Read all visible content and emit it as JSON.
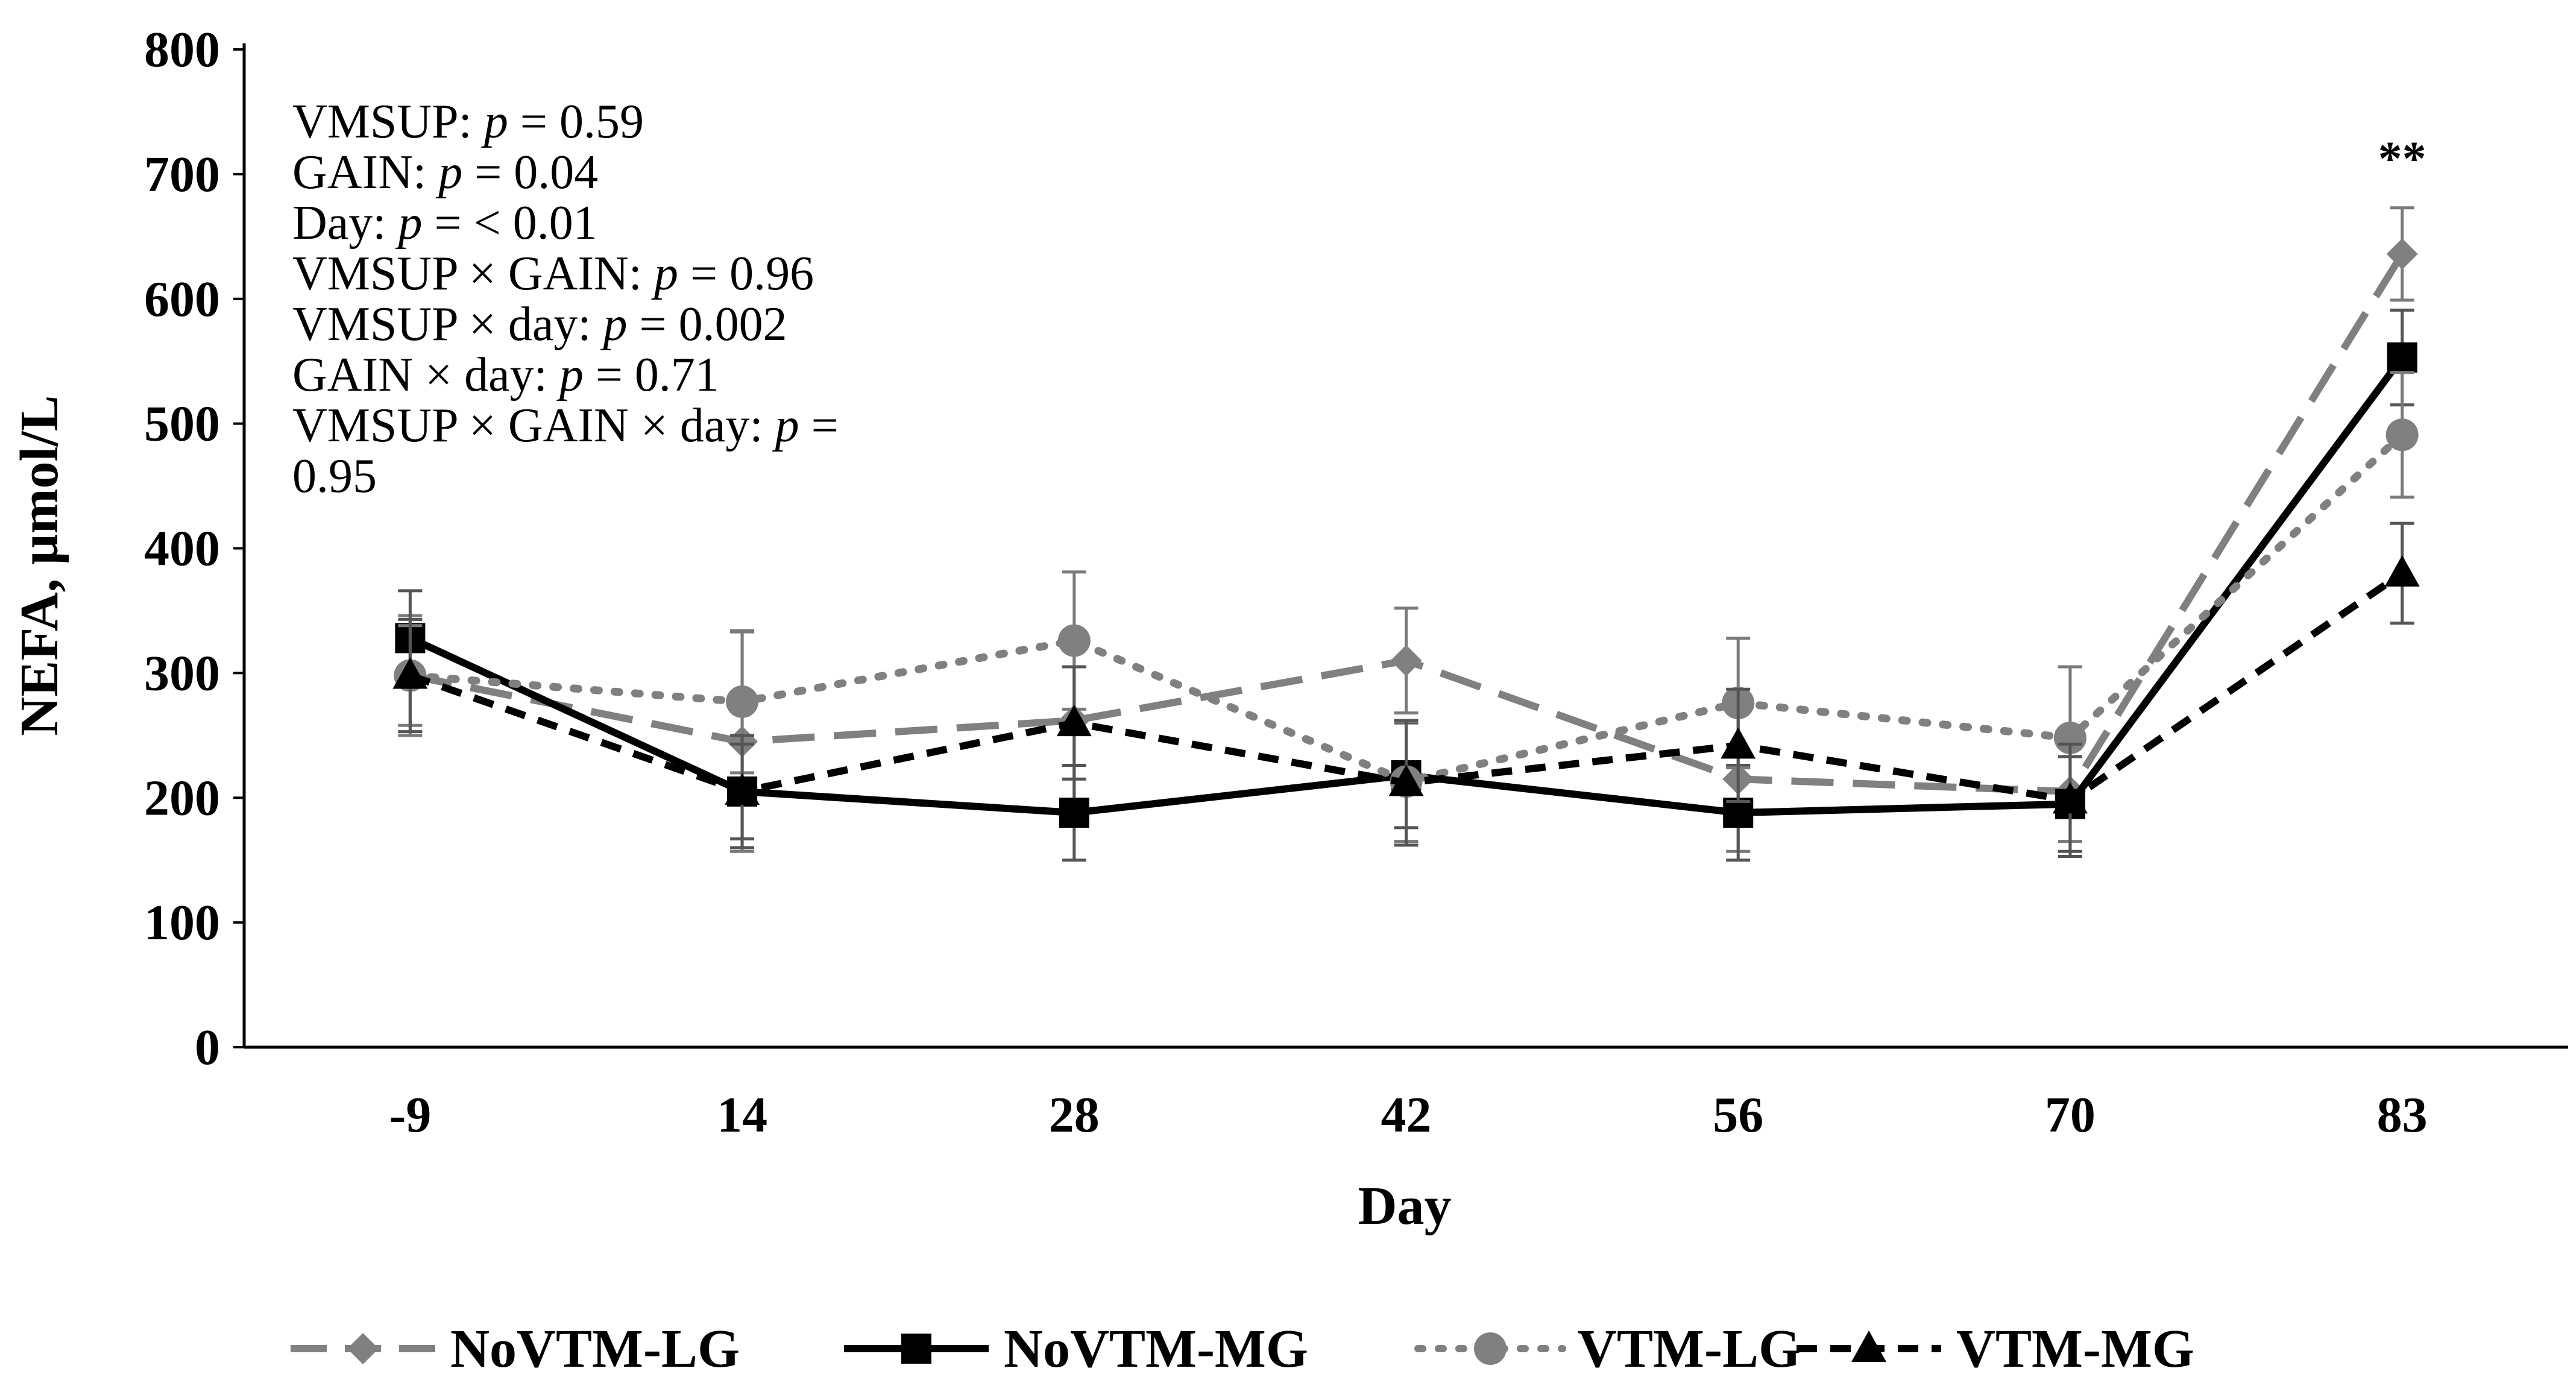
{
  "chart_data": {
    "type": "line",
    "title": "",
    "xlabel": "Day",
    "ylabel": "NEFA, µmol/L",
    "categories": [
      "-9",
      "14",
      "28",
      "42",
      "56",
      "70",
      "83"
    ],
    "ylim": [
      0,
      800
    ],
    "yticks": [
      "0",
      "100",
      "200",
      "300",
      "400",
      "500",
      "600",
      "700",
      "800"
    ],
    "grid": false,
    "legend_position": "bottom",
    "series": [
      {
        "name": "NoVTM-LG",
        "color": "#808080",
        "line_style": "long-dash",
        "marker": "diamond",
        "values": [
          298,
          245,
          262,
          310,
          215,
          205,
          636
        ],
        "error": [
          48,
          88,
          70,
          42,
          58,
          40,
          37
        ]
      },
      {
        "name": "NoVTM-MG",
        "color": "#000000",
        "line_style": "solid",
        "marker": "square",
        "values": [
          328,
          205,
          188,
          218,
          188,
          195,
          553
        ],
        "error": [
          38,
          38,
          38,
          42,
          38,
          38,
          38
        ]
      },
      {
        "name": "VTM-LG",
        "color": "#808080",
        "line_style": "dotted",
        "marker": "circle",
        "values": [
          298,
          277,
          326,
          213,
          276,
          248,
          491
        ],
        "error": [
          40,
          57,
          55,
          48,
          52,
          57,
          50
        ]
      },
      {
        "name": "VTM-MG",
        "color": "#000000",
        "line_style": "dashed",
        "marker": "triangle",
        "values": [
          298,
          205,
          260,
          212,
          242,
          198,
          380
        ],
        "error": [
          45,
          45,
          45,
          50,
          45,
          45,
          40
        ]
      }
    ],
    "annotations": {
      "significance": {
        "category": "83",
        "text": "**"
      },
      "stats_lines": [
        {
          "label": "VMSUP: ",
          "p": "p",
          "rest": " = 0.59"
        },
        {
          "label": "GAIN: ",
          "p": "p",
          "rest": " = 0.04"
        },
        {
          "label": "Day: ",
          "p": "p",
          "rest": " = < 0.01"
        },
        {
          "label": "VMSUP × GAIN: ",
          "p": "p",
          "rest": " = 0.96"
        },
        {
          "label": "VMSUP × day: ",
          "p": "p",
          "rest": " = 0.002"
        },
        {
          "label": "GAIN × day: ",
          "p": "p",
          "rest": " = 0.71"
        },
        {
          "label": "VMSUP × GAIN × day: ",
          "p": "p",
          "rest": " ="
        },
        {
          "label": "0.95",
          "p": "",
          "rest": ""
        }
      ]
    }
  }
}
